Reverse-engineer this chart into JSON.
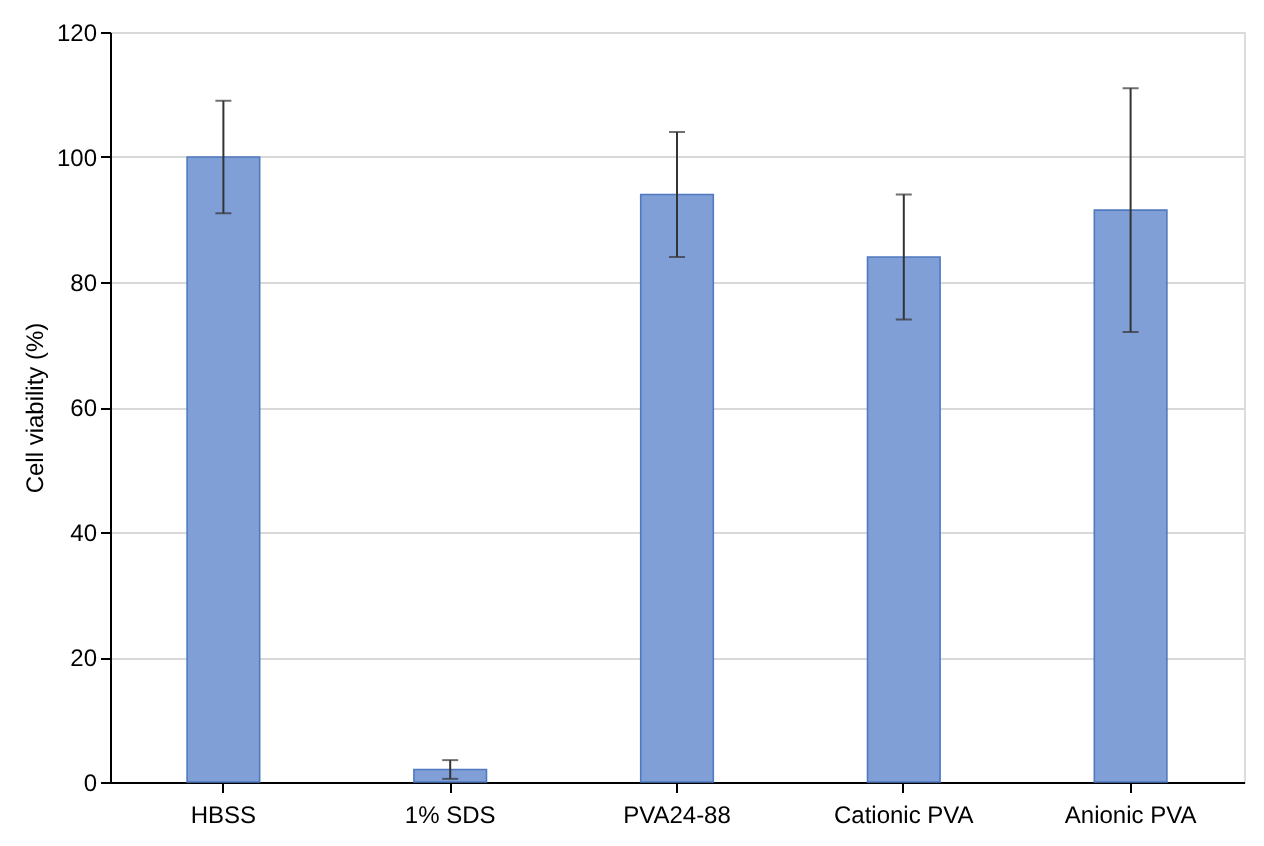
{
  "chart_data": {
    "type": "bar",
    "ylabel": "Cell viability (%)",
    "categories": [
      "HBSS",
      "1% SDS",
      "PVA24-88",
      "Cationic PVA",
      "Anionic PVA"
    ],
    "values": [
      100,
      2,
      94,
      84,
      91.5
    ],
    "errors": [
      9,
      1.5,
      10,
      10,
      [
        72,
        111
      ]
    ],
    "color": "#7f9fd6",
    "ylim": [
      0,
      120
    ],
    "yticks": [
      0,
      20,
      40,
      60,
      80,
      100,
      120
    ],
    "grid": "y"
  }
}
